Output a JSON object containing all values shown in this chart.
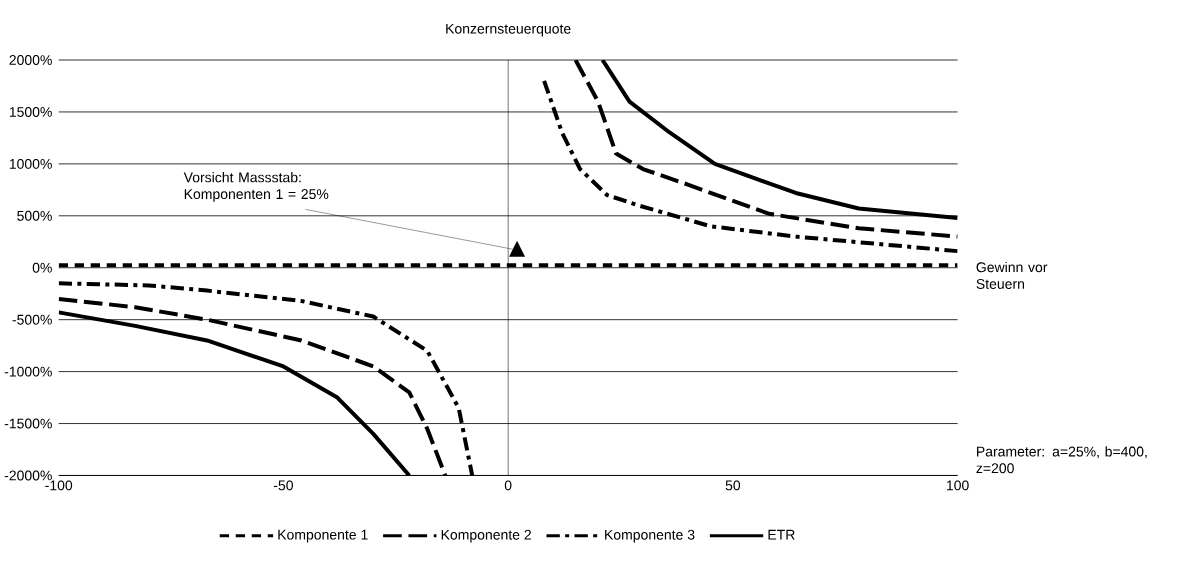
{
  "chart_data": {
    "type": "line",
    "title": "Konzernsteuerquote",
    "xlabel": "Gewinn vor Steuern",
    "xlim": [
      -100,
      100
    ],
    "xticks": [
      -100,
      -50,
      0,
      50,
      100
    ],
    "ylim": [
      -2000,
      2000
    ],
    "yticks": [
      {
        "value": -2000,
        "label": "-2000%"
      },
      {
        "value": -1500,
        "label": "-1500%"
      },
      {
        "value": -1000,
        "label": "-1000%"
      },
      {
        "value": -500,
        "label": "-500%"
      },
      {
        "value": 0,
        "label": "0%"
      },
      {
        "value": 500,
        "label": "500%"
      },
      {
        "value": 1000,
        "label": "1000%"
      },
      {
        "value": 1500,
        "label": "1500%"
      },
      {
        "value": 2000,
        "label": "2000%"
      }
    ],
    "grid": "y",
    "legend": "bottom",
    "marker": "none",
    "ref_lines": [
      {
        "axis": "x",
        "value": 0
      }
    ],
    "series": [
      {
        "name": "Komponente 1",
        "color": "#000000",
        "line_style": "dashed",
        "x": [
          -100,
          100
        ],
        "values": [
          25,
          25
        ]
      },
      {
        "name": "Komponente 2",
        "color": "#000000",
        "line_style": "dashed",
        "x": [
          -100,
          -83,
          -67,
          -46,
          -30,
          -22,
          -18,
          -14,
          0,
          15,
          20,
          24,
          30,
          40,
          58,
          78,
          100
        ],
        "values": [
          -300,
          -380,
          -500,
          -700,
          -950,
          -1200,
          -1550,
          -2000,
          null,
          2000,
          1600,
          1100,
          950,
          800,
          520,
          380,
          300
        ]
      },
      {
        "name": "Komponente 3",
        "color": "#000000",
        "line_style": "dashed",
        "x": [
          -100,
          -80,
          -67,
          -46,
          -30,
          -18,
          -11,
          -8,
          0,
          8,
          12,
          16,
          22,
          29,
          45,
          64,
          100
        ],
        "values": [
          -150,
          -170,
          -220,
          -320,
          -470,
          -800,
          -1350,
          -2000,
          null,
          1800,
          1300,
          950,
          700,
          600,
          400,
          300,
          160
        ]
      },
      {
        "name": "ETR",
        "color": "#000000",
        "line_style": "solid",
        "x": [
          -100,
          -83,
          -67,
          -50,
          -38,
          -30,
          -22,
          0,
          21,
          27,
          36,
          46,
          64,
          78,
          100
        ],
        "values": [
          -430,
          -560,
          -700,
          -950,
          -1250,
          -1600,
          -2000,
          null,
          2000,
          1600,
          1300,
          1000,
          720,
          570,
          480
        ]
      }
    ],
    "annotations": [
      {
        "text": "Vorsicht Massstab: Komponenten 1 = 25%",
        "x": 2,
        "y": 170
      },
      "Parameter: a=25%, b=400, z=200"
    ]
  }
}
